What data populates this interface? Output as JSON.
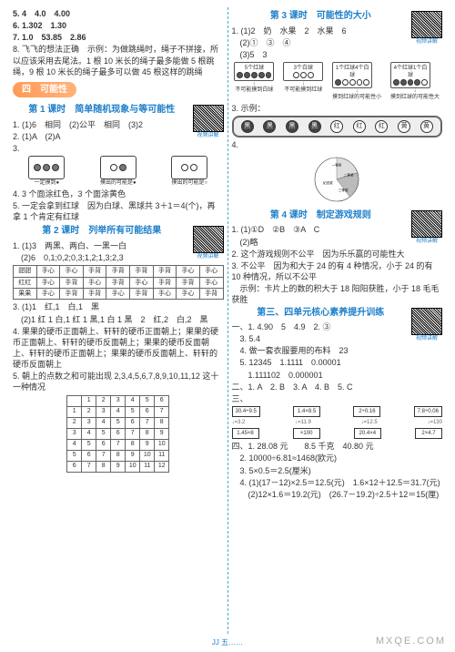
{
  "left": {
    "l5": "5. 4　4.0　4.00",
    "l6": "6. 1.302　1.30",
    "l7": "7. 1.0　53.85　2.86",
    "l8": "8. 飞飞的想法正确　示例：为做跳绳时，绳子不拼接，所以应该采用去尾法。1 根 10 米长的绳子最多能做 5 根跳绳，9 根 10 米长的绳子最多可以做 45 根这样的跳绳",
    "sectTitle": "四　可能性",
    "lesson1": {
      "title": "第 1 课时　简单随机现象与等可能性",
      "q1": "1. (1)6　相同　(2)公平　相同　(3)2",
      "q2": "2. (1)A　(2)A",
      "q3": "3.",
      "fig_caps": [
        "一定摸到●",
        "摸出的可能是●",
        "摸出的可能是○"
      ],
      "q4": "4. 3 个面涂红色，3 个面涂黄色",
      "q5": "5. 一定会拿到红球　因为白球、黑球共 3＋1＝4(个)，再拿 1 个肯定有红球"
    },
    "lesson2": {
      "title": "第 2 课时　列举所有可能结果",
      "q1a": "1. (1)3　两黑、两白、一黑一白",
      "q1b": "　(2)6　0,1;0,2;0,3;1,2;1,3;2,3",
      "tbl": {
        "rows": [
          [
            "甜甜",
            "手心",
            "手心",
            "手背",
            "手背",
            "手背",
            "手背",
            "手心",
            "手心"
          ],
          [
            "红红",
            "手心",
            "手背",
            "手心",
            "手背",
            "手心",
            "手背",
            "手背",
            "手心"
          ],
          [
            "果果",
            "手心",
            "手背",
            "手背",
            "手心",
            "手背",
            "手心",
            "手心",
            "手背"
          ]
        ]
      },
      "q3a": "3. (1)1　红,1　白,1　黑",
      "q3b": "　(2)1 红 1 白,1 红 1 黑,1 白 1 黑　2　红,2　白,2　黑",
      "q4": "4. 果果的硬币正面朝上、轩轩的硬币正面朝上；果果的硬币正面朝上、轩轩的硬币反面朝上；果果的硬币反面朝上、轩轩的硬币正面朝上；果果的硬币反面朝上、轩轩的硬币反面朝上",
      "q5": "5. 朝上的点数之和可能出现 2,3,4,5,6,7,8,9,10,11,12 这十一种情况",
      "sumtbl": [
        [
          "",
          "1",
          "2",
          "3",
          "4",
          "5",
          "6"
        ],
        [
          "1",
          "2",
          "3",
          "4",
          "5",
          "6",
          "7"
        ],
        [
          "2",
          "3",
          "4",
          "5",
          "6",
          "7",
          "8"
        ],
        [
          "3",
          "4",
          "5",
          "6",
          "7",
          "8",
          "9"
        ],
        [
          "4",
          "5",
          "6",
          "7",
          "8",
          "9",
          "10"
        ],
        [
          "5",
          "6",
          "7",
          "8",
          "9",
          "10",
          "11"
        ],
        [
          "6",
          "7",
          "8",
          "9",
          "10",
          "11",
          "12"
        ]
      ]
    }
  },
  "right": {
    "lesson3": {
      "title": "第 3 课时　可能性的大小",
      "q1": "1. (1)2　奶　水果　2　水果　6",
      "q1b": "　(2)①　③　④",
      "q1c": "　(3)5　3",
      "ballboxes": [
        {
          "label": "5个红球",
          "cap": "不可能摸到白球",
          "balls": [
            "k",
            "k",
            "k",
            "k",
            "k"
          ]
        },
        {
          "label": "3个白球",
          "cap": "不可能摸到红球",
          "balls": [
            "",
            "",
            ""
          ]
        },
        {
          "label": "1个红球4个白球",
          "cap": "摸到红球的可能性小",
          "balls": [
            "k",
            "",
            "",
            "",
            ""
          ]
        },
        {
          "label": "4个红球1个白球",
          "cap": "摸到红球的可能性大",
          "balls": [
            "k",
            "k",
            "k",
            "k",
            ""
          ]
        }
      ],
      "q3": "3. 示例：",
      "q3_labels": [
        "黑",
        "黑",
        "黑",
        "黑",
        "红",
        "红",
        "红",
        "黄",
        "黄"
      ],
      "q4": "4.",
      "pie_labels": {
        "p1": "一等奖",
        "p2": "二等奖",
        "p3": "三等奖",
        "p4": "纪念奖"
      }
    },
    "lesson4": {
      "title": "第 4 课时　制定游戏规则",
      "q1": "1. (1)①D　②B　③A　C",
      "q1b": "　(2)略",
      "q2": "2. 这个游戏规则不公平　因为乐乐赢的可能性大",
      "q3": "3. 不公平　因为和大于 24 的有 4 种情况，小于 24 的有 10 种情况，所以不公平",
      "q3b": "　示例：卡片上的数的积大于 18 阳阳获胜，小于 18 毛毛获胜",
      "core": "第三、四单元核心素养提升训练",
      "c1": "一、1. 4.90　5　4.9　2. ③",
      "c1b": "　3. 5.4",
      "c1c": "　4. 做一套衣服要用的布料　23",
      "c1d": "　5. 12345　1.1111　0.00001",
      "c1e": "　　1.111102　0.000001",
      "c2": "二、1. A　2. B　3. A　4. B　5. C",
      "c3": "三、",
      "flow": {
        "row1": [
          "30.4÷9.5",
          "1.4×8.5",
          "2÷0.16",
          "7.8÷0.06"
        ],
        "row1v": [
          "=3.2",
          "=11.9",
          "=12.5",
          "=130"
        ],
        "row1b": [
          "1.45×8",
          "×100",
          "20.4×4",
          "2×4.7"
        ],
        "row1c": [
          "",
          "",
          "",
          ""
        ]
      },
      "c4": "四、1. 28.08 元　　8.5 千克　40.80 元",
      "c4b": "　2. 10000÷6.81≈1468(欧元)",
      "c4c": "　3. 5×0.5＝2.5(厘米)",
      "c4d": "　4. (1)(17－12)×2.5＝12.5(元)　1.6×12＋12.5＝31.7(元)",
      "c4e": "　　(2)12×1.6＝19.2(元)　(26.7－19.2)÷2.5＋12＝15(厘)"
    }
  },
  "qr_caption": "视频讲解",
  "pagenote": "JJ 五……",
  "watermark": "MXQE.COM"
}
